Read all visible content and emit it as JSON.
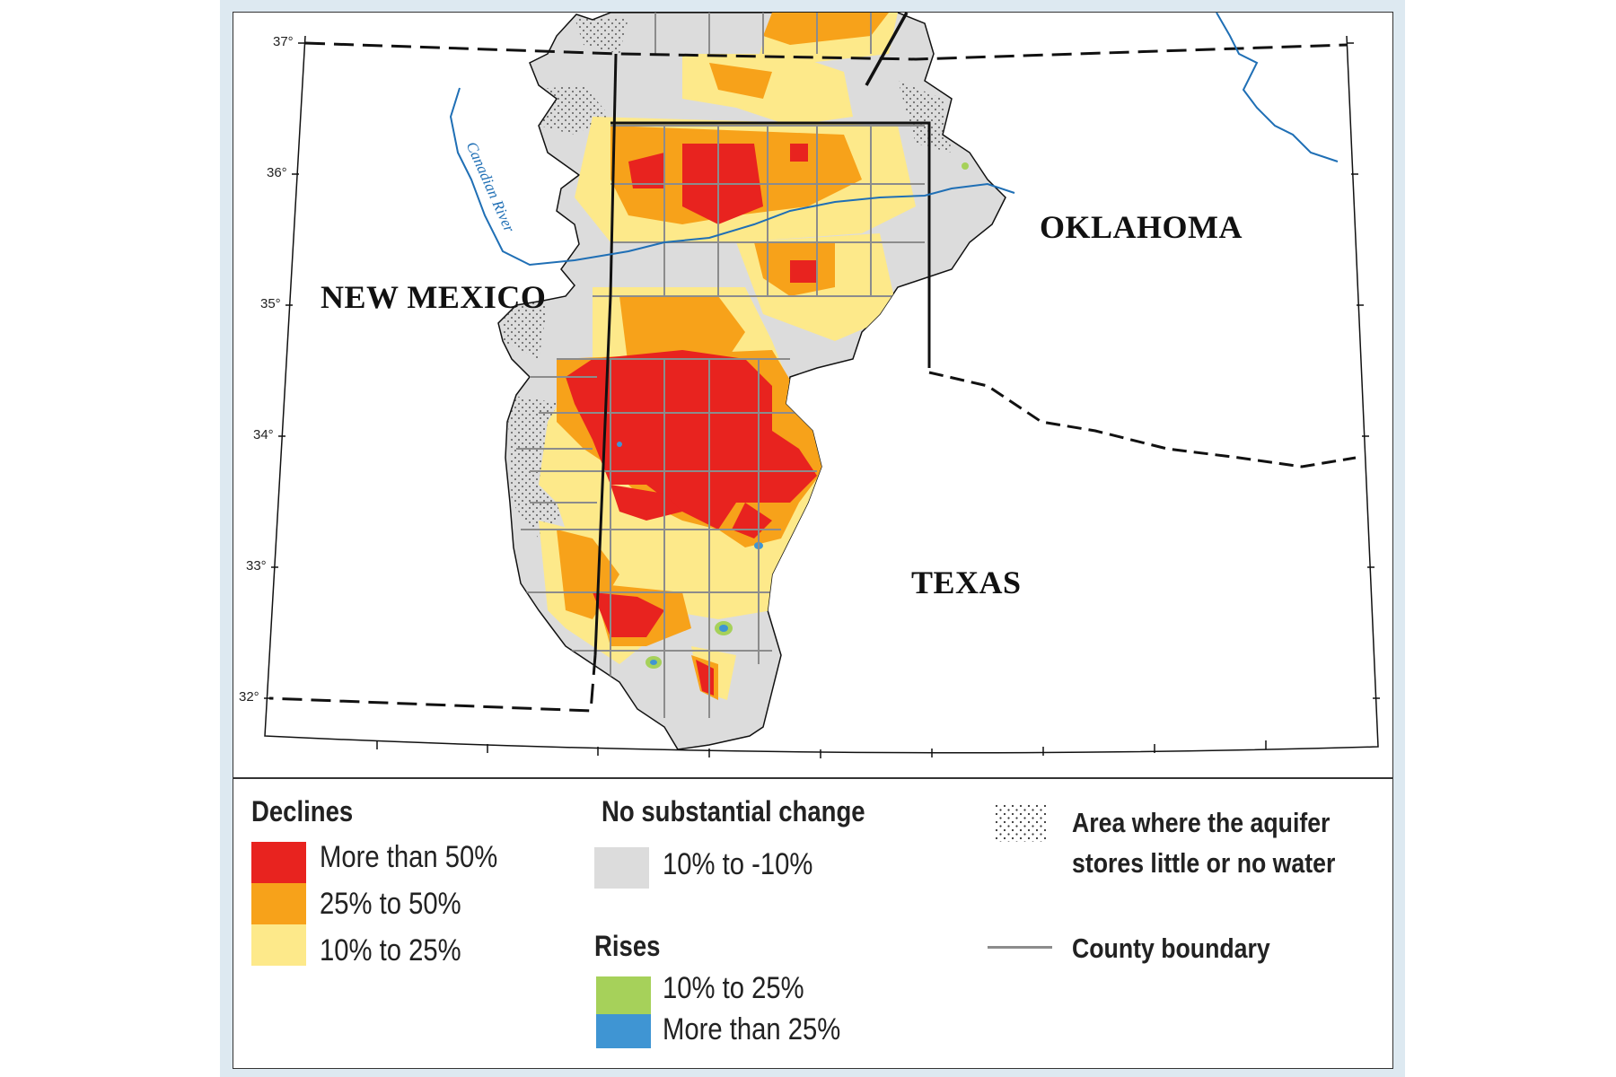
{
  "map": {
    "states": [
      "NEW MEXICO",
      "OKLAHOMA",
      "TEXAS"
    ],
    "river": "Canadian River",
    "latitudes": [
      "37°",
      "36°",
      "35°",
      "34°",
      "33°",
      "32°"
    ]
  },
  "legend": {
    "declines": {
      "heading": "Declines",
      "items": [
        {
          "label": "More than 50%",
          "color": "#e8231f"
        },
        {
          "label": "25% to 50%",
          "color": "#f7a21a"
        },
        {
          "label": "10% to 25%",
          "color": "#fde98a"
        }
      ]
    },
    "no_change": {
      "heading": "No substantial change",
      "items": [
        {
          "label": "10% to -10%",
          "color": "#dcdcdc"
        }
      ]
    },
    "rises": {
      "heading": "Rises",
      "items": [
        {
          "label": "10% to 25%",
          "color": "#a6d15a"
        },
        {
          "label": "More than 25%",
          "color": "#3f95d3"
        }
      ]
    },
    "stipple": {
      "line1": "Area where the aquifer",
      "line2": "stores little or no water"
    },
    "county": {
      "label": "County boundary",
      "color": "#8c8c8c"
    }
  },
  "colors": {
    "state_boundary": "#111111",
    "river": "#1f6fb5",
    "background": "#dde9f1"
  }
}
